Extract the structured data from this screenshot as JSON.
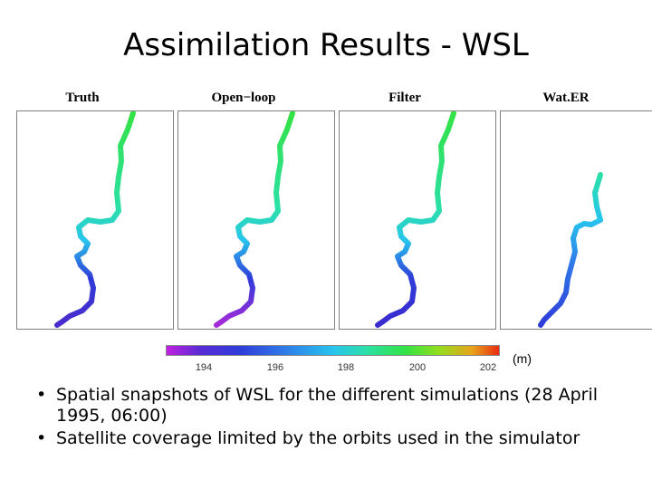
{
  "slide": {
    "title": "Assimilation Results - WSL"
  },
  "panels": [
    {
      "label": "Truth"
    },
    {
      "label": "Open−loop"
    },
    {
      "label": "Filter"
    },
    {
      "label": "Wat.ER"
    }
  ],
  "colorbar": {
    "ticks": [
      "194",
      "196",
      "198",
      "200",
      "202"
    ],
    "unit": "(m)",
    "colors": [
      "#c020e0",
      "#2f3cd8",
      "#27c4ee",
      "#33e243",
      "#e82b13"
    ]
  },
  "bullets": [
    "Spatial snapshots of WSL for the different simulations (28 April 1995, 06:00)",
    "Satellite coverage limited by the orbits used in the simulator"
  ]
}
